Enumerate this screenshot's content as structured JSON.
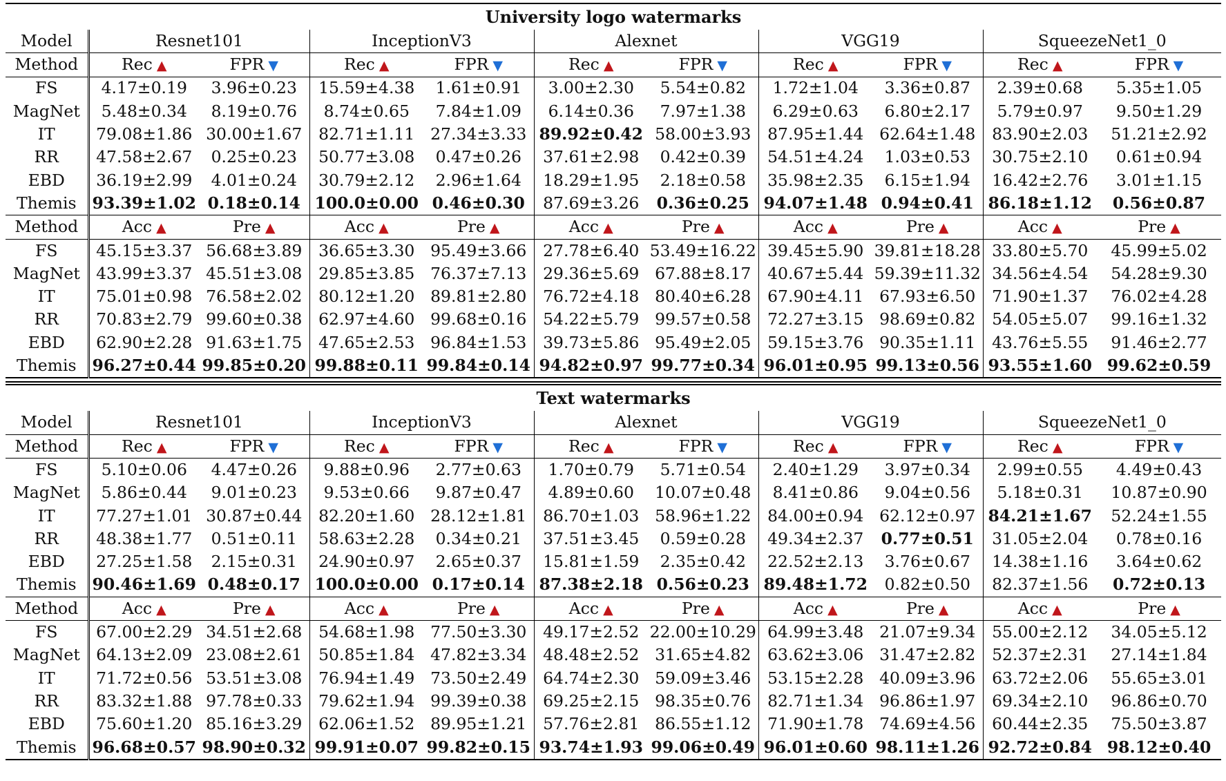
{
  "sections": [
    {
      "title": "University logo watermarks",
      "model_label": "Model",
      "method_label": "Method",
      "models": [
        "Resnet101",
        "InceptionV3",
        "Alexnet",
        "VGG19",
        "SqueezeNet1_0"
      ],
      "metrics1": [
        {
          "name": "Rec",
          "dir": "up"
        },
        {
          "name": "FPR",
          "dir": "down"
        }
      ],
      "rows1": [
        {
          "method": "FS",
          "cells": [
            "4.17±0.19",
            "3.96±0.23",
            "15.59±4.38",
            "1.61±0.91",
            "3.00±2.30",
            "5.54±0.82",
            "1.72±1.04",
            "3.36±0.87",
            "2.39±0.68",
            "5.35±1.05"
          ],
          "bold": []
        },
        {
          "method": "MagNet",
          "cells": [
            "5.48±0.34",
            "8.19±0.76",
            "8.74±0.65",
            "7.84±1.09",
            "6.14±0.36",
            "7.97±1.38",
            "6.29±0.63",
            "6.80±2.17",
            "5.79±0.97",
            "9.50±1.29"
          ],
          "bold": []
        },
        {
          "method": "IT",
          "cells": [
            "79.08±1.86",
            "30.00±1.67",
            "82.71±1.11",
            "27.34±3.33",
            "89.92±0.42",
            "58.00±3.93",
            "87.95±1.44",
            "62.64±1.48",
            "83.90±2.03",
            "51.21±2.92"
          ],
          "bold": [
            4
          ]
        },
        {
          "method": "RR",
          "cells": [
            "47.58±2.67",
            "0.25±0.23",
            "50.77±3.08",
            "0.47±0.26",
            "37.61±2.98",
            "0.42±0.39",
            "54.51±4.24",
            "1.03±0.53",
            "30.75±2.10",
            "0.61±0.94"
          ],
          "bold": []
        },
        {
          "method": "EBD",
          "cells": [
            "36.19±2.99",
            "4.01±0.24",
            "30.79±2.12",
            "2.96±1.64",
            "18.29±1.95",
            "2.18±0.58",
            "35.98±2.35",
            "6.15±1.94",
            "16.42±2.76",
            "3.01±1.15"
          ],
          "bold": []
        },
        {
          "method": "Themis",
          "cells": [
            "93.39±1.02",
            "0.18±0.14",
            "100.0±0.00",
            "0.46±0.30",
            "87.69±3.26",
            "0.36±0.25",
            "94.07±1.48",
            "0.94±0.41",
            "86.18±1.12",
            "0.56±0.87"
          ],
          "bold": [
            0,
            1,
            2,
            3,
            5,
            6,
            7,
            8,
            9
          ]
        }
      ],
      "metrics2": [
        {
          "name": "Acc",
          "dir": "up"
        },
        {
          "name": "Pre",
          "dir": "up"
        }
      ],
      "rows2": [
        {
          "method": "FS",
          "cells": [
            "45.15±3.37",
            "56.68±3.89",
            "36.65±3.30",
            "95.49±3.66",
            "27.78±6.40",
            "53.49±16.22",
            "39.45±5.90",
            "39.81±18.28",
            "33.80±5.70",
            "45.99±5.02"
          ],
          "bold": []
        },
        {
          "method": "MagNet",
          "cells": [
            "43.99±3.37",
            "45.51±3.08",
            "29.85±3.85",
            "76.37±7.13",
            "29.36±5.69",
            "67.88±8.17",
            "40.67±5.44",
            "59.39±11.32",
            "34.56±4.54",
            "54.28±9.30"
          ],
          "bold": []
        },
        {
          "method": "IT",
          "cells": [
            "75.01±0.98",
            "76.58±2.02",
            "80.12±1.20",
            "89.81±2.80",
            "76.72±4.18",
            "80.40±6.28",
            "67.90±4.11",
            "67.93±6.50",
            "71.90±1.37",
            "76.02±4.28"
          ],
          "bold": []
        },
        {
          "method": "RR",
          "cells": [
            "70.83±2.79",
            "99.60±0.38",
            "62.97±4.60",
            "99.68±0.16",
            "54.22±5.79",
            "99.57±0.58",
            "72.27±3.15",
            "98.69±0.82",
            "54.05±5.07",
            "99.16±1.32"
          ],
          "bold": []
        },
        {
          "method": "EBD",
          "cells": [
            "62.90±2.28",
            "91.63±1.75",
            "47.65±2.53",
            "96.84±1.53",
            "39.73±5.86",
            "95.49±2.05",
            "59.15±3.76",
            "90.35±1.11",
            "43.76±5.55",
            "91.46±2.77"
          ],
          "bold": []
        },
        {
          "method": "Themis",
          "cells": [
            "96.27±0.44",
            "99.85±0.20",
            "99.88±0.11",
            "99.84±0.14",
            "94.82±0.97",
            "99.77±0.34",
            "96.01±0.95",
            "99.13±0.56",
            "93.55±1.60",
            "99.62±0.59"
          ],
          "bold": [
            0,
            1,
            2,
            3,
            4,
            5,
            6,
            7,
            8,
            9
          ]
        }
      ]
    },
    {
      "title": "Text watermarks",
      "model_label": "Model",
      "method_label": "Method",
      "models": [
        "Resnet101",
        "InceptionV3",
        "Alexnet",
        "VGG19",
        "SqueezeNet1_0"
      ],
      "metrics1": [
        {
          "name": "Rec",
          "dir": "up"
        },
        {
          "name": "FPR",
          "dir": "down"
        }
      ],
      "rows1": [
        {
          "method": "FS",
          "cells": [
            "5.10±0.06",
            "4.47±0.26",
            "9.88±0.96",
            "2.77±0.63",
            "1.70±0.79",
            "5.71±0.54",
            "2.40±1.29",
            "3.97±0.34",
            "2.99±0.55",
            "4.49±0.43"
          ],
          "bold": []
        },
        {
          "method": "MagNet",
          "cells": [
            "5.86±0.44",
            "9.01±0.23",
            "9.53±0.66",
            "9.87±0.47",
            "4.89±0.60",
            "10.07±0.48",
            "8.41±0.86",
            "9.04±0.56",
            "5.18±0.31",
            "10.87±0.90"
          ],
          "bold": []
        },
        {
          "method": "IT",
          "cells": [
            "77.27±1.01",
            "30.87±0.44",
            "82.20±1.60",
            "28.12±1.81",
            "86.70±1.03",
            "58.96±1.22",
            "84.00±0.94",
            "62.12±0.97",
            "84.21±1.67",
            "52.24±1.55"
          ],
          "bold": [
            8
          ]
        },
        {
          "method": "RR",
          "cells": [
            "48.38±1.77",
            "0.51±0.11",
            "58.63±2.28",
            "0.34±0.21",
            "37.51±3.45",
            "0.59±0.28",
            "49.34±2.37",
            "0.77±0.51",
            "31.05±2.04",
            "0.78±0.16"
          ],
          "bold": [
            7
          ]
        },
        {
          "method": "EBD",
          "cells": [
            "27.25±1.58",
            "2.15±0.31",
            "24.90±0.97",
            "2.65±0.37",
            "15.81±1.59",
            "2.35±0.42",
            "22.52±2.13",
            "3.76±0.67",
            "14.38±1.16",
            "3.64±0.62"
          ],
          "bold": []
        },
        {
          "method": "Themis",
          "cells": [
            "90.46±1.69",
            "0.48±0.17",
            "100.0±0.00",
            "0.17±0.14",
            "87.38±2.18",
            "0.56±0.23",
            "89.48±1.72",
            "0.82±0.50",
            "82.37±1.56",
            "0.72±0.13"
          ],
          "bold": [
            0,
            1,
            2,
            3,
            4,
            5,
            6,
            9
          ]
        }
      ],
      "metrics2": [
        {
          "name": "Acc",
          "dir": "up"
        },
        {
          "name": "Pre",
          "dir": "up"
        }
      ],
      "rows2": [
        {
          "method": "FS",
          "cells": [
            "67.00±2.29",
            "34.51±2.68",
            "54.68±1.98",
            "77.50±3.30",
            "49.17±2.52",
            "22.00±10.29",
            "64.99±3.48",
            "21.07±9.34",
            "55.00±2.12",
            "34.05±5.12"
          ],
          "bold": []
        },
        {
          "method": "MagNet",
          "cells": [
            "64.13±2.09",
            "23.08±2.61",
            "50.85±1.84",
            "47.82±3.34",
            "48.48±2.52",
            "31.65±4.82",
            "63.62±3.06",
            "31.47±2.82",
            "52.37±2.31",
            "27.14±1.84"
          ],
          "bold": []
        },
        {
          "method": "IT",
          "cells": [
            "71.72±0.56",
            "53.51±3.08",
            "76.94±1.49",
            "73.50±2.49",
            "64.74±2.30",
            "59.09±3.46",
            "53.15±2.28",
            "40.09±3.96",
            "63.72±2.06",
            "55.65±3.01"
          ],
          "bold": []
        },
        {
          "method": "RR",
          "cells": [
            "83.32±1.88",
            "97.78±0.33",
            "79.62±1.94",
            "99.39±0.38",
            "69.25±2.15",
            "98.35±0.76",
            "82.71±1.34",
            "96.86±1.97",
            "69.34±2.10",
            "96.86±0.70"
          ],
          "bold": []
        },
        {
          "method": "EBD",
          "cells": [
            "75.60±1.20",
            "85.16±3.29",
            "62.06±1.52",
            "89.95±1.21",
            "57.76±2.81",
            "86.55±1.12",
            "71.90±1.78",
            "74.69±4.56",
            "60.44±2.35",
            "75.50±3.87"
          ],
          "bold": []
        },
        {
          "method": "Themis",
          "cells": [
            "96.68±0.57",
            "98.90±0.32",
            "99.91±0.07",
            "99.82±0.15",
            "93.74±1.93",
            "99.06±0.49",
            "96.01±0.60",
            "98.11±1.26",
            "92.72±0.84",
            "98.12±0.40"
          ],
          "bold": [
            0,
            1,
            2,
            3,
            4,
            5,
            6,
            7,
            8,
            9
          ]
        }
      ]
    }
  ],
  "colors": {
    "up_arrow": "#c0161b",
    "down_arrow": "#1f6fd6"
  },
  "icons": {
    "up": "up-triangle-icon",
    "down": "down-triangle-icon"
  }
}
